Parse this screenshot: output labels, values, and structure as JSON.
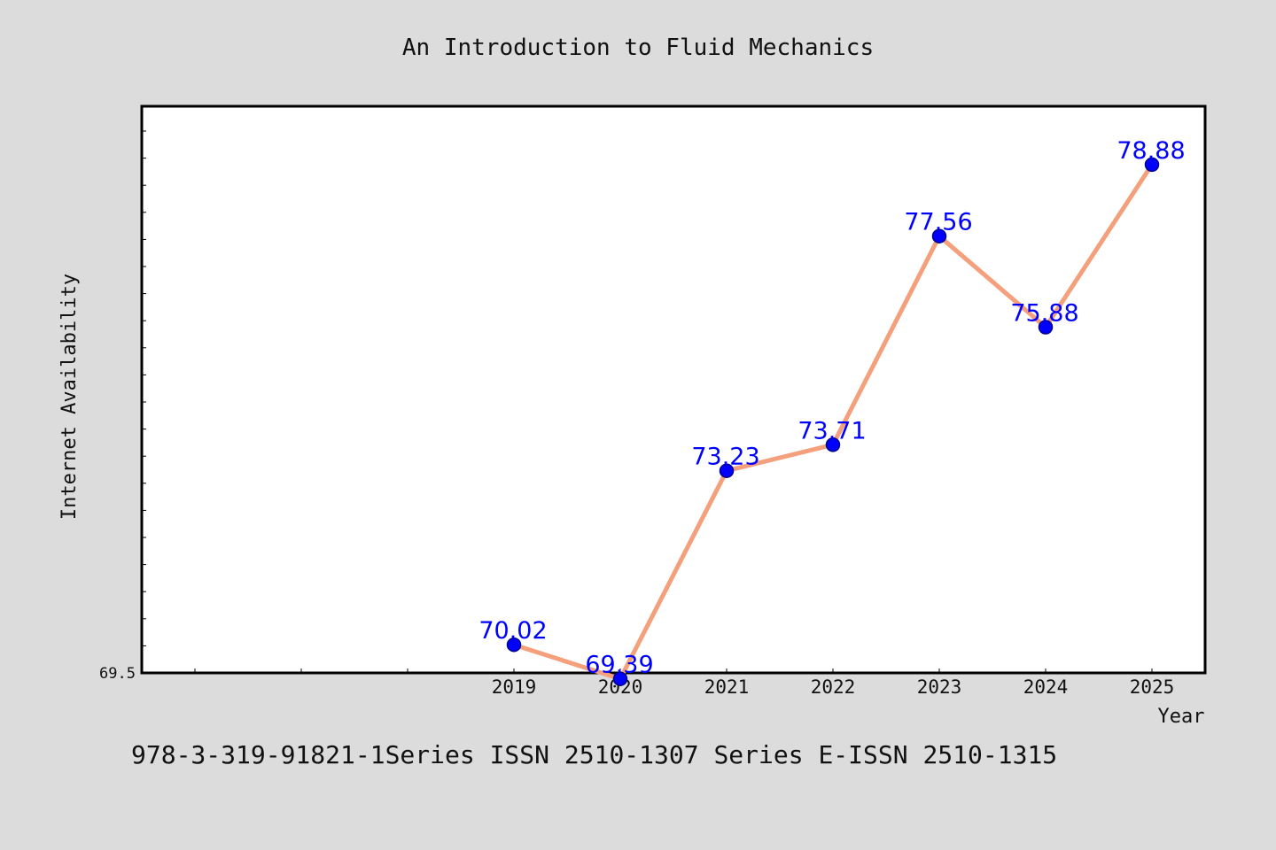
{
  "chart_data": {
    "type": "line",
    "title": "An Introduction to Fluid Mechanics",
    "xlabel": "Year",
    "ylabel": "Internet Availability",
    "categories": [
      "2019",
      "2020",
      "2021",
      "2022",
      "2023",
      "2024",
      "2025"
    ],
    "series": [
      {
        "values": [
          70.02,
          69.39,
          73.23,
          73.71,
          77.56,
          75.88,
          78.88
        ],
        "labels": [
          "70.02",
          "69.39",
          "73.23",
          "73.71",
          "77.56",
          "75.88",
          "78.88"
        ]
      }
    ],
    "y_tick_label": "69.5",
    "ylim": [
      69.5,
      80.0
    ],
    "grid": false,
    "colors": {
      "line": "#f4a07c",
      "marker": "#0000ff",
      "data_label": "#0000ff",
      "background": "#dcdcdc",
      "plot_background": "#ffffff"
    }
  },
  "footer": "978-3-319-91821-1Series ISSN 2510-1307 Series E-ISSN 2510-1315"
}
